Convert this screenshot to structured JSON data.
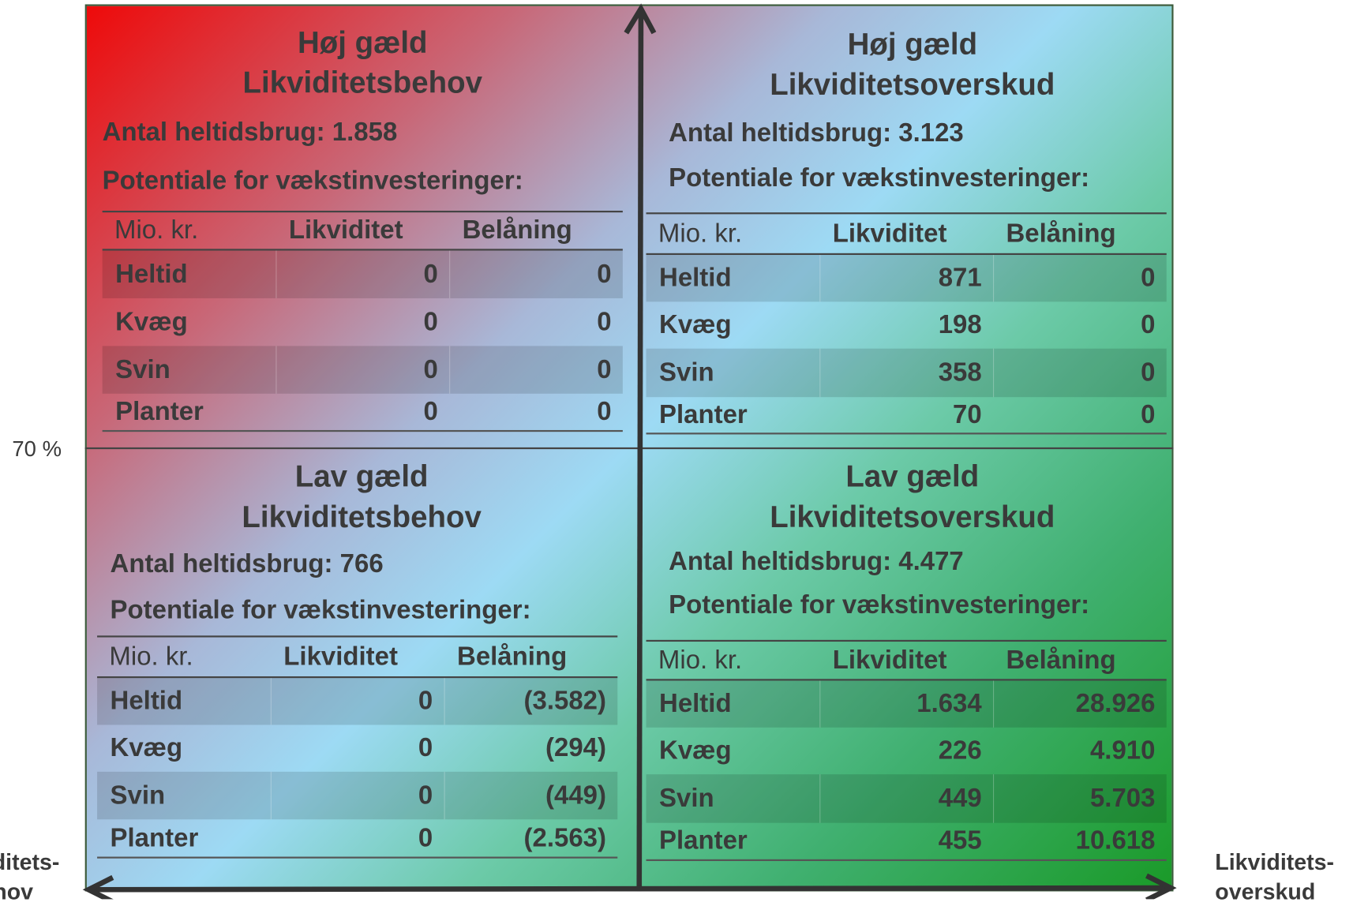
{
  "quadrants": [
    {
      "title": [
        "Høj gæld",
        "Likviditetsbehov"
      ],
      "count": "Antal heltidsbrug: 1.858",
      "potential": "Potentiale for vækstinvesteringer:",
      "header": [
        "Mio. kr.",
        "Likviditet",
        "Belåning"
      ],
      "rows": [
        [
          "Heltid",
          "0",
          "0"
        ],
        [
          "Kvæg",
          "0",
          "0"
        ],
        [
          "Svin",
          "0",
          "0"
        ],
        [
          "Planter",
          "0",
          "0"
        ]
      ]
    },
    {
      "title": [
        "Høj gæld",
        "Likviditetsoverskud"
      ],
      "count": "Antal heltidsbrug: 3.123",
      "potential": "Potentiale for vækstinvesteringer:",
      "header": [
        "Mio. kr.",
        "Likviditet",
        "Belåning"
      ],
      "rows": [
        [
          "Heltid",
          "871",
          "0"
        ],
        [
          "Kvæg",
          "198",
          "0"
        ],
        [
          "Svin",
          "358",
          "0"
        ],
        [
          "Planter",
          "70",
          "0"
        ]
      ]
    },
    {
      "title": [
        "Lav gæld",
        "Likviditetsbehov"
      ],
      "count": "Antal heltidsbrug: 766",
      "potential": "Potentiale for vækstinvesteringer:",
      "header": [
        "Mio. kr.",
        "Likviditet",
        "Belåning"
      ],
      "rows": [
        [
          "Heltid",
          "0",
          "(3.582)"
        ],
        [
          "Kvæg",
          "0",
          "(294)"
        ],
        [
          "Svin",
          "0",
          "(449)"
        ],
        [
          "Planter",
          "0",
          "(2.563)"
        ]
      ]
    },
    {
      "title": [
        "Lav gæld",
        "Likviditetsoverskud"
      ],
      "count": "Antal heltidsbrug: 4.477",
      "potential": "Potentiale for vækstinvesteringer:",
      "header": [
        "Mio. kr.",
        "Likviditet",
        "Belåning"
      ],
      "rows": [
        [
          "Heltid",
          "1.634",
          "28.926"
        ],
        [
          "Kvæg",
          "226",
          "4.910"
        ],
        [
          "Svin",
          "449",
          "5.703"
        ],
        [
          "Planter",
          "455",
          "10.618"
        ]
      ]
    }
  ],
  "y_label": "70 %",
  "x_axis_left": [
    "Likviditets-",
    "behov"
  ],
  "x_axis_right": [
    "Likviditets-",
    "overskud"
  ]
}
